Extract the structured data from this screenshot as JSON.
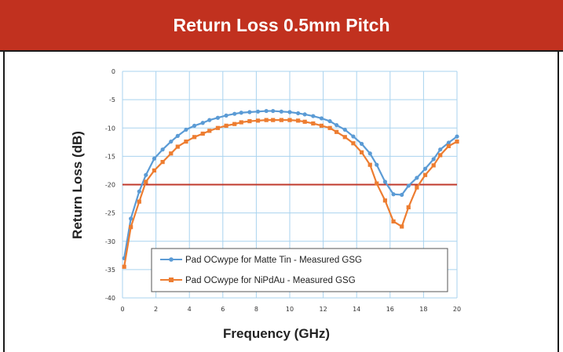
{
  "banner": {
    "title": "Return Loss 0.5mm Pitch"
  },
  "colors": {
    "banner": "#c1311f",
    "series1": "#5b9bd5",
    "series2": "#ed7d31",
    "threshold": "#c0392b",
    "grid": "#a9d3ef"
  },
  "chart_data": {
    "type": "line",
    "title": "",
    "xlabel": "Frequency (GHz)",
    "ylabel": "Return Loss (dB)",
    "xlim": [
      0,
      20
    ],
    "ylim": [
      -40,
      0
    ],
    "xticks": [
      "0",
      "2",
      "4",
      "6",
      "8",
      "10",
      "12",
      "14",
      "16",
      "18",
      "20"
    ],
    "yticks": [
      "0",
      "-5",
      "-10",
      "-15",
      "-20",
      "-25",
      "-30",
      "-35",
      "-40"
    ],
    "grid": true,
    "legend_position": "bottom-center",
    "threshold": {
      "y": -20
    },
    "series": [
      {
        "name": "Pad OCwype for Matte Tin - Measured GSG",
        "x": [
          0.1,
          0.5,
          1,
          1.4,
          1.9,
          2.4,
          2.9,
          3.3,
          3.8,
          4.3,
          4.8,
          5.2,
          5.7,
          6.2,
          6.7,
          7.1,
          7.6,
          8.1,
          8.6,
          9,
          9.5,
          10,
          10.5,
          10.9,
          11.4,
          11.9,
          12.4,
          12.8,
          13.3,
          13.8,
          14.3,
          14.8,
          15.2,
          15.7,
          16.2,
          16.7,
          17.1,
          17.6,
          18.1,
          18.6,
          19,
          19.5,
          20
        ],
        "y": [
          -33,
          -26,
          -21.2,
          -18.3,
          -15.4,
          -13.8,
          -12.4,
          -11.4,
          -10.3,
          -9.6,
          -9.1,
          -8.6,
          -8.2,
          -7.8,
          -7.5,
          -7.3,
          -7.2,
          -7.1,
          -7.0,
          -7.0,
          -7.1,
          -7.2,
          -7.4,
          -7.6,
          -7.9,
          -8.3,
          -8.8,
          -9.5,
          -10.3,
          -11.5,
          -12.8,
          -14.5,
          -16.5,
          -19.5,
          -21.7,
          -21.8,
          -20.2,
          -18.8,
          -17.2,
          -15.5,
          -13.8,
          -12.6,
          -11.5
        ]
      },
      {
        "name": "Pad OCwype for NiPdAu - Measured GSG",
        "x": [
          0.1,
          0.5,
          1,
          1.4,
          1.9,
          2.4,
          2.9,
          3.3,
          3.8,
          4.3,
          4.8,
          5.2,
          5.7,
          6.2,
          6.7,
          7.1,
          7.6,
          8.1,
          8.6,
          9,
          9.5,
          10,
          10.5,
          10.9,
          11.4,
          11.9,
          12.4,
          12.8,
          13.3,
          13.8,
          14.3,
          14.8,
          15.2,
          15.7,
          16.2,
          16.7,
          17.1,
          17.6,
          18.1,
          18.6,
          19,
          19.5,
          20
        ],
        "y": [
          -34.5,
          -27.5,
          -23,
          -19.5,
          -17.5,
          -16.0,
          -14.5,
          -13.3,
          -12.4,
          -11.6,
          -11.0,
          -10.5,
          -10.0,
          -9.6,
          -9.3,
          -9.0,
          -8.8,
          -8.7,
          -8.6,
          -8.6,
          -8.6,
          -8.6,
          -8.7,
          -8.9,
          -9.2,
          -9.6,
          -10.0,
          -10.7,
          -11.6,
          -12.7,
          -14.3,
          -16.5,
          -19.8,
          -22.8,
          -26.5,
          -27.4,
          -24.0,
          -20.5,
          -18.3,
          -16.6,
          -14.8,
          -13.2,
          -12.4
        ]
      }
    ]
  }
}
